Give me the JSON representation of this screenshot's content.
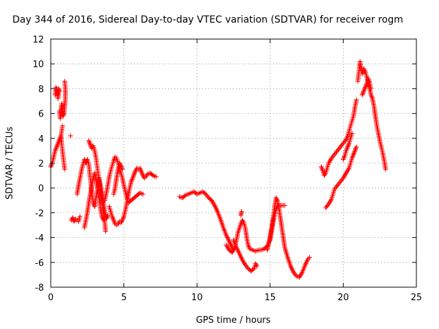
{
  "chart_data": {
    "type": "scatter",
    "title": "Day 344 of 2016, Sidereal Day-to-day VTEC variation (SDTVAR) for receiver rogm",
    "xlabel": "GPS time / hours",
    "ylabel": "SDTVAR / TECUs",
    "xlim": [
      0,
      25
    ],
    "ylim": [
      -8,
      12
    ],
    "xticks": [
      0,
      5,
      10,
      15,
      20,
      25
    ],
    "yticks": [
      -8,
      -6,
      -4,
      -2,
      0,
      2,
      4,
      6,
      8,
      10,
      12
    ],
    "xtick_labels": [
      "0",
      "5",
      "10",
      "15",
      "20",
      "25"
    ],
    "ytick_labels": [
      "-8",
      "-6",
      "-4",
      "-2",
      "0",
      "2",
      "4",
      "6",
      "8",
      "10",
      "12"
    ],
    "grid": true,
    "marker": "plus",
    "color": "#ff0000",
    "series": [
      {
        "points": [
          [
            0.0,
            1.7
          ],
          [
            0.1,
            2.0
          ],
          [
            0.2,
            2.5
          ],
          [
            0.3,
            3.0
          ],
          [
            0.4,
            3.3
          ],
          [
            0.5,
            3.6
          ],
          [
            0.6,
            3.9
          ],
          [
            0.7,
            4.2
          ],
          [
            0.75,
            4.6
          ],
          [
            0.8,
            5.0
          ]
        ]
      },
      {
        "points": [
          [
            0.3,
            7.5
          ],
          [
            0.35,
            8.1
          ],
          [
            0.4,
            8.0
          ],
          [
            0.45,
            7.7
          ],
          [
            0.5,
            7.2
          ],
          [
            0.55,
            8.0
          ],
          [
            0.6,
            7.8
          ]
        ]
      },
      {
        "points": [
          [
            0.6,
            6.2
          ],
          [
            0.65,
            5.6
          ],
          [
            0.7,
            6.2
          ],
          [
            0.75,
            6.8
          ],
          [
            0.8,
            6.4
          ],
          [
            0.85,
            5.8
          ],
          [
            0.9,
            6.0
          ],
          [
            0.95,
            6.5
          ],
          [
            1.0,
            7.2
          ],
          [
            1.0,
            8.0
          ],
          [
            0.95,
            8.6
          ]
        ]
      },
      {
        "points": [
          [
            0.7,
            4.2
          ],
          [
            0.75,
            3.5
          ],
          [
            0.8,
            3.0
          ],
          [
            0.85,
            2.5
          ],
          [
            0.9,
            2.0
          ],
          [
            0.95,
            1.5
          ]
        ]
      },
      {
        "points": [
          [
            1.35,
            4.2
          ]
        ]
      },
      {
        "points": [
          [
            1.4,
            -2.6
          ],
          [
            1.5,
            -2.4
          ],
          [
            1.6,
            -2.7
          ],
          [
            1.7,
            -2.5
          ],
          [
            1.8,
            -2.6
          ],
          [
            1.9,
            -2.7
          ],
          [
            2.0,
            -2.3
          ]
        ]
      },
      {
        "points": [
          [
            1.8,
            -0.5
          ],
          [
            1.9,
            0.2
          ],
          [
            2.0,
            0.8
          ],
          [
            2.1,
            1.4
          ],
          [
            2.2,
            1.9
          ],
          [
            2.3,
            2.3
          ],
          [
            2.4,
            2.0
          ],
          [
            2.5,
            2.3
          ],
          [
            2.6,
            1.9
          ],
          [
            2.7,
            0.8
          ],
          [
            2.8,
            -0.2
          ],
          [
            2.9,
            -1.2
          ],
          [
            3.0,
            -1.5
          ],
          [
            3.1,
            -0.7
          ],
          [
            3.2,
            -0.1
          ],
          [
            3.3,
            0.8
          ],
          [
            3.4,
            0.2
          ],
          [
            3.5,
            -0.5
          ],
          [
            3.6,
            -1.2
          ],
          [
            3.7,
            -2.0
          ],
          [
            3.8,
            -2.5
          ],
          [
            3.9,
            -2.2
          ]
        ]
      },
      {
        "points": [
          [
            2.3,
            -3.2
          ],
          [
            2.4,
            -2.6
          ],
          [
            2.5,
            -2.0
          ],
          [
            2.6,
            -1.2
          ],
          [
            2.7,
            -0.5
          ],
          [
            2.8,
            0.2
          ],
          [
            2.9,
            0.8
          ],
          [
            3.0,
            1.2
          ],
          [
            3.1,
            0.6
          ],
          [
            3.2,
            0.0
          ],
          [
            3.3,
            -0.8
          ],
          [
            3.4,
            -1.7
          ],
          [
            3.5,
            -2.3
          ],
          [
            3.6,
            -2.6
          ]
        ]
      },
      {
        "points": [
          [
            2.6,
            3.8
          ],
          [
            2.7,
            3.5
          ],
          [
            2.8,
            3.2
          ],
          [
            2.9,
            3.4
          ],
          [
            3.0,
            3.0
          ],
          [
            3.1,
            2.4
          ],
          [
            3.2,
            1.5
          ],
          [
            3.3,
            0.6
          ],
          [
            3.4,
            -0.2
          ],
          [
            3.5,
            -1.0
          ],
          [
            3.6,
            -1.8
          ],
          [
            3.7,
            -2.8
          ],
          [
            3.75,
            -3.5
          ]
        ]
      },
      {
        "points": [
          [
            3.7,
            -1.0
          ],
          [
            3.8,
            -0.4
          ],
          [
            3.9,
            0.2
          ],
          [
            4.0,
            0.9
          ],
          [
            4.1,
            1.4
          ],
          [
            4.2,
            1.8
          ],
          [
            4.3,
            2.2
          ],
          [
            4.4,
            2.5
          ],
          [
            4.5,
            2.4
          ],
          [
            4.6,
            2.0
          ],
          [
            4.7,
            1.6
          ],
          [
            4.8,
            1.2
          ],
          [
            4.9,
            0.8
          ],
          [
            5.0,
            0.2
          ],
          [
            5.1,
            -0.3
          ],
          [
            5.2,
            -0.8
          ],
          [
            5.3,
            -1.2
          ],
          [
            5.5,
            -1.0
          ],
          [
            5.7,
            -0.8
          ],
          [
            5.9,
            -0.6
          ],
          [
            6.1,
            -0.4
          ],
          [
            6.3,
            -0.5
          ]
        ]
      },
      {
        "points": [
          [
            4.0,
            -1.5
          ],
          [
            4.1,
            -1.9
          ],
          [
            4.2,
            -2.3
          ],
          [
            4.3,
            -2.6
          ],
          [
            4.4,
            -2.9
          ],
          [
            4.5,
            -3.0
          ],
          [
            4.6,
            -2.9
          ],
          [
            4.7,
            -2.7
          ],
          [
            4.8,
            -2.8
          ],
          [
            4.9,
            -2.6
          ],
          [
            5.0,
            -2.3
          ],
          [
            5.1,
            -1.8
          ],
          [
            5.2,
            -1.2
          ],
          [
            5.3,
            -0.6
          ],
          [
            5.4,
            0.0
          ],
          [
            5.5,
            0.5
          ],
          [
            5.6,
            0.8
          ],
          [
            5.7,
            1.1
          ],
          [
            5.8,
            1.4
          ],
          [
            5.9,
            1.6
          ],
          [
            6.0,
            1.5
          ],
          [
            6.1,
            1.6
          ],
          [
            6.2,
            1.3
          ],
          [
            6.3,
            1.0
          ],
          [
            6.4,
            0.8
          ],
          [
            6.5,
            0.9
          ],
          [
            6.6,
            1.1
          ],
          [
            6.8,
            1.2
          ],
          [
            7.0,
            1.0
          ],
          [
            7.2,
            0.9
          ]
        ]
      },
      {
        "points": [
          [
            4.3,
            -0.5
          ],
          [
            4.4,
            0.0
          ],
          [
            4.5,
            0.8
          ],
          [
            4.6,
            1.5
          ],
          [
            4.7,
            2.0
          ],
          [
            4.8,
            1.8
          ],
          [
            4.9,
            1.5
          ]
        ]
      },
      {
        "points": [
          [
            8.8,
            -0.7
          ],
          [
            9.0,
            -0.8
          ],
          [
            9.2,
            -0.6
          ],
          [
            9.4,
            -0.5
          ],
          [
            9.6,
            -0.4
          ],
          [
            9.8,
            -0.3
          ],
          [
            10.0,
            -0.5
          ],
          [
            10.2,
            -0.4
          ],
          [
            10.4,
            -0.3
          ],
          [
            10.6,
            -0.5
          ],
          [
            10.8,
            -0.8
          ],
          [
            11.0,
            -1.0
          ],
          [
            11.2,
            -1.4
          ],
          [
            11.4,
            -1.9
          ],
          [
            11.6,
            -2.5
          ],
          [
            11.8,
            -3.2
          ],
          [
            12.0,
            -3.8
          ],
          [
            12.2,
            -4.3
          ],
          [
            12.4,
            -4.8
          ],
          [
            12.5,
            -5.0
          ]
        ]
      },
      {
        "points": [
          [
            12.0,
            -4.6
          ],
          [
            12.2,
            -5.0
          ],
          [
            12.4,
            -5.2
          ],
          [
            12.6,
            -4.8
          ],
          [
            12.8,
            -3.6
          ],
          [
            13.0,
            -2.9
          ],
          [
            13.1,
            -2.6
          ],
          [
            13.2,
            -2.8
          ],
          [
            13.3,
            -3.2
          ],
          [
            13.4,
            -4.0
          ],
          [
            13.5,
            -4.6
          ],
          [
            13.6,
            -4.9
          ],
          [
            13.8,
            -5.0
          ],
          [
            14.0,
            -5.1
          ],
          [
            14.2,
            -5.0
          ],
          [
            14.4,
            -5.0
          ],
          [
            14.6,
            -4.9
          ],
          [
            14.8,
            -4.7
          ],
          [
            15.0,
            -4.2
          ],
          [
            15.1,
            -3.5
          ],
          [
            15.2,
            -2.8
          ],
          [
            15.3,
            -2.2
          ],
          [
            15.4,
            -1.7
          ],
          [
            15.5,
            -1.5
          ],
          [
            15.6,
            -1.4
          ],
          [
            15.8,
            -1.4
          ],
          [
            16.0,
            -1.4
          ]
        ]
      },
      {
        "points": [
          [
            12.5,
            -4.2
          ],
          [
            12.7,
            -4.8
          ],
          [
            12.9,
            -5.3
          ],
          [
            13.1,
            -5.8
          ],
          [
            13.3,
            -6.2
          ],
          [
            13.5,
            -6.5
          ],
          [
            13.7,
            -6.7
          ],
          [
            13.9,
            -6.5
          ],
          [
            14.0,
            -6.1
          ],
          [
            14.1,
            -6.3
          ]
        ]
      },
      {
        "points": [
          [
            13.0,
            -2.2
          ],
          [
            13.05,
            -1.9
          ]
        ]
      },
      {
        "points": [
          [
            14.8,
            -5.0
          ],
          [
            14.9,
            -4.5
          ],
          [
            15.0,
            -3.9
          ],
          [
            15.1,
            -3.2
          ],
          [
            15.2,
            -2.5
          ],
          [
            15.3,
            -1.6
          ],
          [
            15.4,
            -0.8
          ],
          [
            15.5,
            -1.0
          ],
          [
            15.6,
            -1.6
          ],
          [
            15.7,
            -2.4
          ],
          [
            15.8,
            -3.2
          ],
          [
            15.9,
            -4.0
          ],
          [
            16.0,
            -4.8
          ],
          [
            16.2,
            -5.6
          ],
          [
            16.4,
            -6.3
          ],
          [
            16.6,
            -6.8
          ],
          [
            16.8,
            -7.1
          ],
          [
            17.0,
            -7.2
          ],
          [
            17.2,
            -6.8
          ],
          [
            17.4,
            -6.2
          ],
          [
            17.6,
            -5.7
          ],
          [
            17.7,
            -5.6
          ]
        ]
      },
      {
        "points": [
          [
            18.5,
            1.7
          ],
          [
            18.6,
            1.4
          ],
          [
            18.7,
            1.0
          ],
          [
            18.8,
            1.2
          ],
          [
            18.9,
            1.6
          ],
          [
            19.0,
            2.0
          ],
          [
            19.2,
            2.4
          ],
          [
            19.4,
            2.7
          ],
          [
            19.6,
            3.0
          ],
          [
            19.8,
            3.3
          ],
          [
            20.0,
            3.6
          ],
          [
            20.2,
            3.9
          ],
          [
            20.3,
            4.2
          ],
          [
            20.4,
            4.6
          ],
          [
            20.5,
            5.0
          ],
          [
            20.6,
            5.4
          ],
          [
            20.7,
            5.8
          ],
          [
            20.8,
            6.5
          ],
          [
            20.9,
            7.1
          ]
        ]
      },
      {
        "points": [
          [
            18.8,
            -1.6
          ],
          [
            19.0,
            -1.3
          ],
          [
            19.2,
            -0.9
          ],
          [
            19.3,
            -0.5
          ],
          [
            19.4,
            -0.1
          ],
          [
            19.6,
            0.2
          ],
          [
            19.8,
            0.5
          ],
          [
            20.0,
            0.8
          ],
          [
            20.2,
            1.2
          ],
          [
            20.4,
            1.6
          ],
          [
            20.5,
            2.0
          ],
          [
            20.6,
            2.4
          ],
          [
            20.7,
            2.7
          ],
          [
            20.8,
            3.0
          ],
          [
            20.9,
            3.3
          ]
        ]
      },
      {
        "points": [
          [
            20.0,
            2.3
          ],
          [
            20.1,
            2.6
          ],
          [
            20.2,
            3.0
          ],
          [
            20.3,
            3.3
          ],
          [
            20.4,
            3.6
          ],
          [
            20.5,
            4.0
          ],
          [
            20.6,
            4.4
          ]
        ]
      },
      {
        "points": [
          [
            21.0,
            8.6
          ],
          [
            21.05,
            9.2
          ],
          [
            21.1,
            9.6
          ],
          [
            21.15,
            10.2
          ],
          [
            21.2,
            9.8
          ],
          [
            21.3,
            9.2
          ],
          [
            21.4,
            9.6
          ],
          [
            21.5,
            9.4
          ],
          [
            21.6,
            9.0
          ],
          [
            21.7,
            8.4
          ],
          [
            21.8,
            8.0
          ],
          [
            21.9,
            7.5
          ],
          [
            22.0,
            7.2
          ],
          [
            22.1,
            6.6
          ],
          [
            22.2,
            5.8
          ],
          [
            22.3,
            5.0
          ],
          [
            22.4,
            4.4
          ],
          [
            22.5,
            3.8
          ],
          [
            22.6,
            3.3
          ],
          [
            22.7,
            2.8
          ],
          [
            22.8,
            2.2
          ],
          [
            22.9,
            1.5
          ]
        ]
      },
      {
        "points": [
          [
            21.3,
            7.5
          ],
          [
            21.4,
            7.8
          ],
          [
            21.5,
            8.1
          ],
          [
            21.6,
            8.4
          ],
          [
            21.7,
            8.8
          ],
          [
            21.8,
            8.5
          ],
          [
            21.9,
            8.0
          ]
        ]
      }
    ]
  }
}
